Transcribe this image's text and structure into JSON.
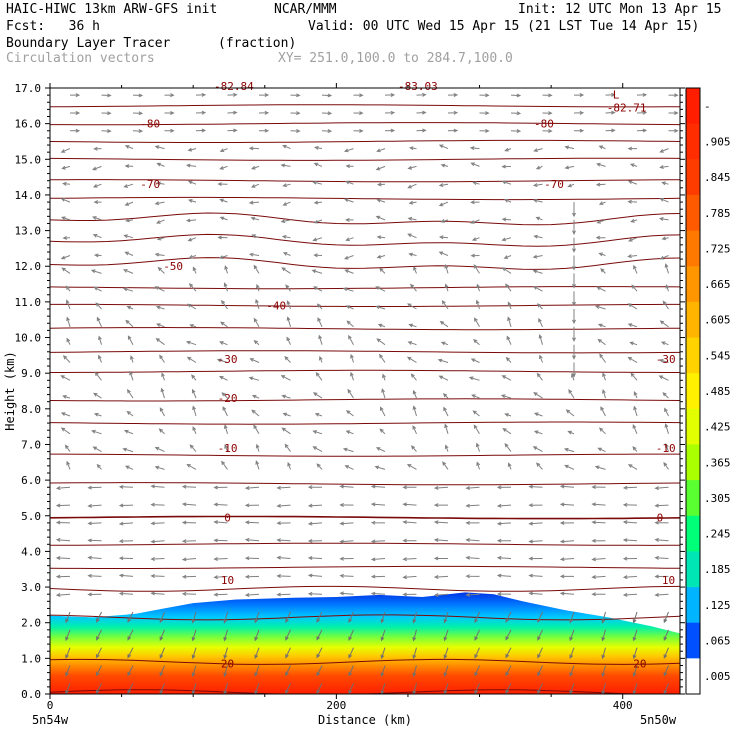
{
  "header": {
    "model": "HAIC-HIWC 13km ARW-GFS init",
    "center": "NCAR/MMM",
    "init": "Init: 12 UTC Mon 13 Apr 15",
    "fcst": "Fcst:   36 h",
    "valid": "Valid: 00 UTC Wed 15 Apr 15 (21 LST Tue 14 Apr 15)",
    "field": "Boundary Layer Tracer",
    "units": "(fraction)",
    "vectors": "Circulation vectors",
    "xsec": "XY= 251.0,100.0 to 284.7,100.0"
  },
  "chart_data": {
    "type": "cross-section",
    "xlabel": "Distance (km)",
    "ylabel": "Height (km)",
    "xlim": [
      0,
      440
    ],
    "ylim": [
      0,
      17
    ],
    "xticks": [
      0,
      200,
      400
    ],
    "xtick_labels": [
      "0",
      "200",
      "400"
    ],
    "yticks": [
      "0.0",
      "1.0",
      "2.0",
      "3.0",
      "4.0",
      "5.0",
      "6.0",
      "7.0",
      "8.0",
      "9.0",
      "10.0",
      "11.0",
      "12.0",
      "13.0",
      "14.0",
      "15.0",
      "16.0",
      "17.0"
    ],
    "corner_left": "5n54w",
    "corner_right": "5n50w",
    "contour_labels": [
      {
        "text": "-80",
        "x": 70,
        "y": 16.0
      },
      {
        "text": "-80",
        "x": 345,
        "y": 16.0
      },
      {
        "text": "-70",
        "x": 70,
        "y": 14.3
      },
      {
        "text": "-70",
        "x": 352,
        "y": 14.3
      },
      {
        "text": "-50",
        "x": 86,
        "y": 12.0
      },
      {
        "text": "-40",
        "x": 158,
        "y": 10.9
      },
      {
        "text": "-30",
        "x": 124,
        "y": 9.4
      },
      {
        "text": "-30",
        "x": 430,
        "y": 9.4
      },
      {
        "text": "-20",
        "x": 124,
        "y": 8.3
      },
      {
        "text": "-10",
        "x": 124,
        "y": 6.9
      },
      {
        "text": "-10",
        "x": 430,
        "y": 6.9
      },
      {
        "text": "0",
        "x": 124,
        "y": 4.95
      },
      {
        "text": "0",
        "x": 426,
        "y": 4.95
      },
      {
        "text": "10",
        "x": 124,
        "y": 3.2
      },
      {
        "text": "10",
        "x": 432,
        "y": 3.2
      },
      {
        "text": "20",
        "x": 124,
        "y": 0.85
      },
      {
        "text": "20",
        "x": 412,
        "y": 0.85
      }
    ],
    "min_label": {
      "text": "L",
      "value": "-82.71",
      "x": 393,
      "y": 16.6
    },
    "top_labels": [
      "-82.84",
      "-83.03"
    ],
    "colorbar": {
      "labels": [
        "-",
        ".905",
        ".845",
        ".785",
        ".725",
        ".665",
        ".605",
        ".545",
        ".485",
        ".425",
        ".365",
        ".305",
        ".245",
        ".185",
        ".125",
        ".065",
        ".005"
      ],
      "colors": [
        "#ff1e00",
        "#ff2d00",
        "#ff3c00",
        "#ff5a00",
        "#ff7800",
        "#ff9600",
        "#ffb400",
        "#ffd200",
        "#fff000",
        "#e1ff00",
        "#aaff00",
        "#5aff32",
        "#00ff78",
        "#00e6b4",
        "#00b4ff",
        "#0050ff",
        "#ffffff"
      ]
    }
  }
}
